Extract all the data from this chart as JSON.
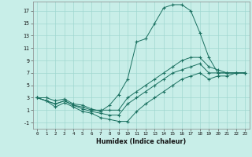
{
  "xlabel": "Humidex (Indice chaleur)",
  "bg_color": "#c8eee8",
  "grid_color": "#a0d8d0",
  "line_color": "#1a7060",
  "xlim": [
    -0.5,
    23.5
  ],
  "ylim": [
    -2.0,
    18.5
  ],
  "xticks": [
    0,
    1,
    2,
    3,
    4,
    5,
    6,
    7,
    8,
    9,
    10,
    11,
    12,
    13,
    14,
    15,
    16,
    17,
    18,
    19,
    20,
    21,
    22,
    23
  ],
  "yticks": [
    -1,
    1,
    3,
    5,
    7,
    9,
    11,
    13,
    15,
    17
  ],
  "lines": [
    {
      "x": [
        0,
        1,
        2,
        3,
        4,
        5,
        6,
        7,
        8,
        9,
        10,
        11,
        12,
        13,
        14,
        15,
        16,
        17,
        18,
        19,
        20,
        21,
        22,
        23
      ],
      "y": [
        3,
        3,
        2.5,
        2.8,
        2,
        1.8,
        1.2,
        0.8,
        1.8,
        3.5,
        6,
        12,
        12.5,
        15,
        17.5,
        18,
        18,
        17,
        13.5,
        9.5,
        7,
        7,
        7,
        7
      ]
    },
    {
      "x": [
        0,
        1,
        2,
        3,
        4,
        5,
        6,
        7,
        8,
        9,
        10,
        11,
        12,
        13,
        14,
        15,
        16,
        17,
        18,
        19,
        20,
        21,
        22,
        23
      ],
      "y": [
        3,
        2.5,
        2,
        2.5,
        1.8,
        1.5,
        1,
        1,
        1,
        1,
        3,
        4,
        5,
        6,
        7,
        8,
        9,
        9.5,
        9.5,
        8,
        7.5,
        7,
        7,
        7
      ]
    },
    {
      "x": [
        0,
        1,
        2,
        3,
        4,
        5,
        6,
        7,
        8,
        9,
        10,
        11,
        12,
        13,
        14,
        15,
        16,
        17,
        18,
        19,
        20,
        21,
        22,
        23
      ],
      "y": [
        3,
        2.5,
        2,
        2.5,
        1.8,
        1.2,
        0.8,
        0.5,
        0.2,
        0.2,
        2,
        3,
        4,
        5,
        6,
        7,
        7.5,
        8,
        8.5,
        7,
        7,
        7,
        7,
        7
      ]
    },
    {
      "x": [
        0,
        1,
        2,
        3,
        4,
        5,
        6,
        7,
        8,
        9,
        10,
        11,
        12,
        13,
        14,
        15,
        16,
        17,
        18,
        19,
        20,
        21,
        22,
        23
      ],
      "y": [
        3,
        2.5,
        1.5,
        2.2,
        1.5,
        0.8,
        0.5,
        -0.2,
        -0.5,
        -0.8,
        -0.8,
        0.8,
        2,
        3,
        4,
        5,
        6,
        6.5,
        7,
        6,
        6.5,
        6.5,
        7,
        7
      ]
    }
  ]
}
